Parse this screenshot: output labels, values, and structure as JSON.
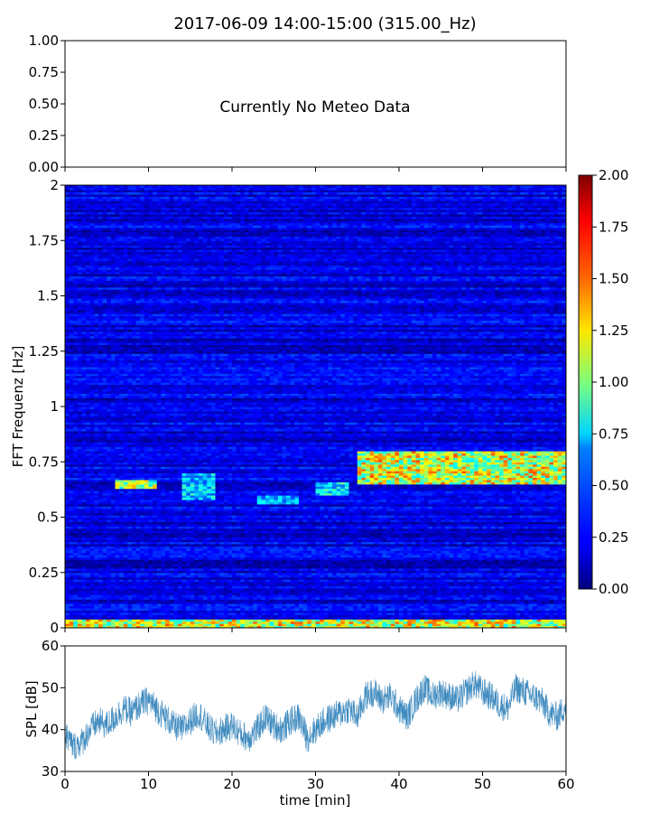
{
  "figure": {
    "title": "2017-06-09 14:00-15:00 (315.00_Hz)"
  },
  "chart_data": [
    {
      "type": "line",
      "panel": "meteo",
      "annotation": "Currently No Meteo Data",
      "ylim": [
        0,
        1
      ],
      "yticks": [
        "0.00",
        "0.25",
        "0.50",
        "0.75",
        "1.00"
      ],
      "xlim": [
        0,
        60
      ],
      "x_tick_labels_shown": false,
      "series": []
    },
    {
      "type": "heatmap",
      "panel": "spectrogram",
      "ylabel": "FFT Frequenz [Hz]",
      "xlim": [
        0,
        60
      ],
      "ylim": [
        0,
        2
      ],
      "yticks": [
        "0",
        "0.25",
        "0.5",
        "0.75",
        "1",
        "1.25",
        "1.5",
        "1.75",
        "2"
      ],
      "colormap": "jet",
      "colorbar": {
        "range": [
          0,
          2
        ],
        "ticks": [
          "0.00",
          "0.25",
          "0.50",
          "0.75",
          "1.00",
          "1.25",
          "1.50",
          "1.75",
          "2.00"
        ]
      },
      "background_level": 0.2,
      "features": [
        {
          "t_start": 0,
          "t_end": 60,
          "f_low": 0.0,
          "f_high": 0.04,
          "level": 1.6
        },
        {
          "t_start": 6,
          "t_end": 11,
          "f_low": 0.63,
          "f_high": 0.67,
          "level": 1.4
        },
        {
          "t_start": 14,
          "t_end": 18,
          "f_low": 0.58,
          "f_high": 0.7,
          "level": 0.9
        },
        {
          "t_start": 23,
          "t_end": 28,
          "f_low": 0.56,
          "f_high": 0.6,
          "level": 0.8
        },
        {
          "t_start": 30,
          "t_end": 34,
          "f_low": 0.6,
          "f_high": 0.66,
          "level": 1.0
        },
        {
          "t_start": 35,
          "t_end": 60,
          "f_low": 0.65,
          "f_high": 0.8,
          "level": 1.6
        }
      ]
    },
    {
      "type": "line",
      "panel": "spl",
      "xlabel": "time [min]",
      "ylabel": "SPL [dB]",
      "xlim": [
        0,
        60
      ],
      "ylim": [
        30,
        60
      ],
      "xticks": [
        "0",
        "10",
        "20",
        "30",
        "40",
        "50",
        "60"
      ],
      "yticks": [
        "30",
        "40",
        "50",
        "60"
      ],
      "color": "#1f77b4",
      "series": [
        {
          "x": [
            0,
            1,
            2,
            3,
            4,
            5,
            6,
            7,
            8,
            9,
            10,
            11,
            12,
            13,
            14,
            15,
            16,
            17,
            18,
            19,
            20,
            21,
            22,
            23,
            24,
            25,
            26,
            27,
            28,
            29,
            30,
            31,
            32,
            33,
            34,
            35,
            36,
            37,
            38,
            39,
            40,
            41,
            42,
            43,
            44,
            45,
            46,
            47,
            48,
            49,
            50,
            51,
            52,
            53,
            54,
            55,
            56,
            57,
            58,
            59,
            60
          ],
          "y": [
            39,
            36,
            37,
            40,
            42,
            41,
            43,
            45,
            44,
            46,
            47,
            45,
            43,
            41,
            40,
            42,
            44,
            41,
            39,
            40,
            41,
            39,
            38,
            40,
            43,
            41,
            40,
            42,
            43,
            38,
            40,
            42,
            43,
            44,
            45,
            43,
            48,
            49,
            47,
            48,
            45,
            43,
            47,
            50,
            48,
            49,
            48,
            47,
            49,
            51,
            49,
            48,
            46,
            45,
            50,
            49,
            48,
            47,
            44,
            43,
            46
          ]
        }
      ]
    }
  ]
}
